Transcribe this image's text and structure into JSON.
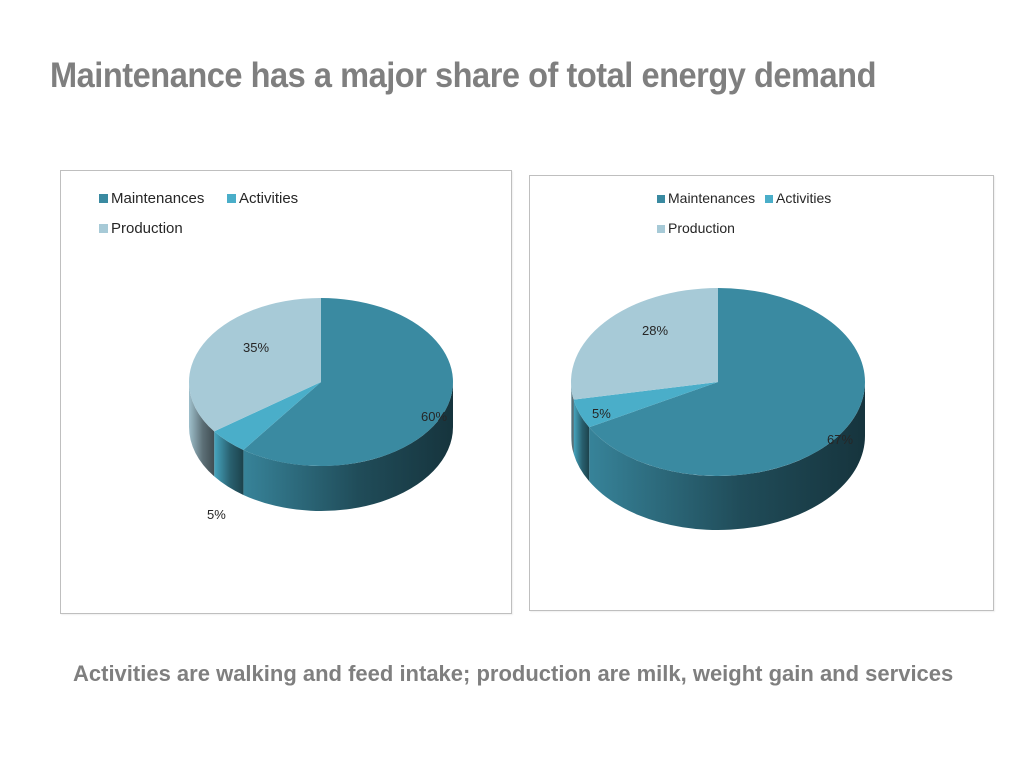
{
  "slide": {
    "title": "Maintenance has a major share of total energy demand",
    "caption": "Activities are walking and feed intake; production are milk, weight gain and services"
  },
  "chart_data": [
    {
      "type": "pie",
      "style": "3d",
      "categories": [
        "Maintenances",
        "Activities",
        "Production"
      ],
      "values": [
        60,
        5,
        35
      ],
      "labels": [
        "60%",
        "5%",
        "35%"
      ],
      "colors": [
        "#3a8aa1",
        "#4aaec9",
        "#a7cad7"
      ],
      "legend_position": "top-left"
    },
    {
      "type": "pie",
      "style": "3d",
      "categories": [
        "Maintenances",
        "Activities",
        "Production"
      ],
      "values": [
        67,
        5,
        28
      ],
      "labels": [
        "67%",
        "5%",
        "28%"
      ],
      "colors": [
        "#3a8aa1",
        "#4aaec9",
        "#a7cad7"
      ],
      "legend_position": "top-right"
    }
  ]
}
